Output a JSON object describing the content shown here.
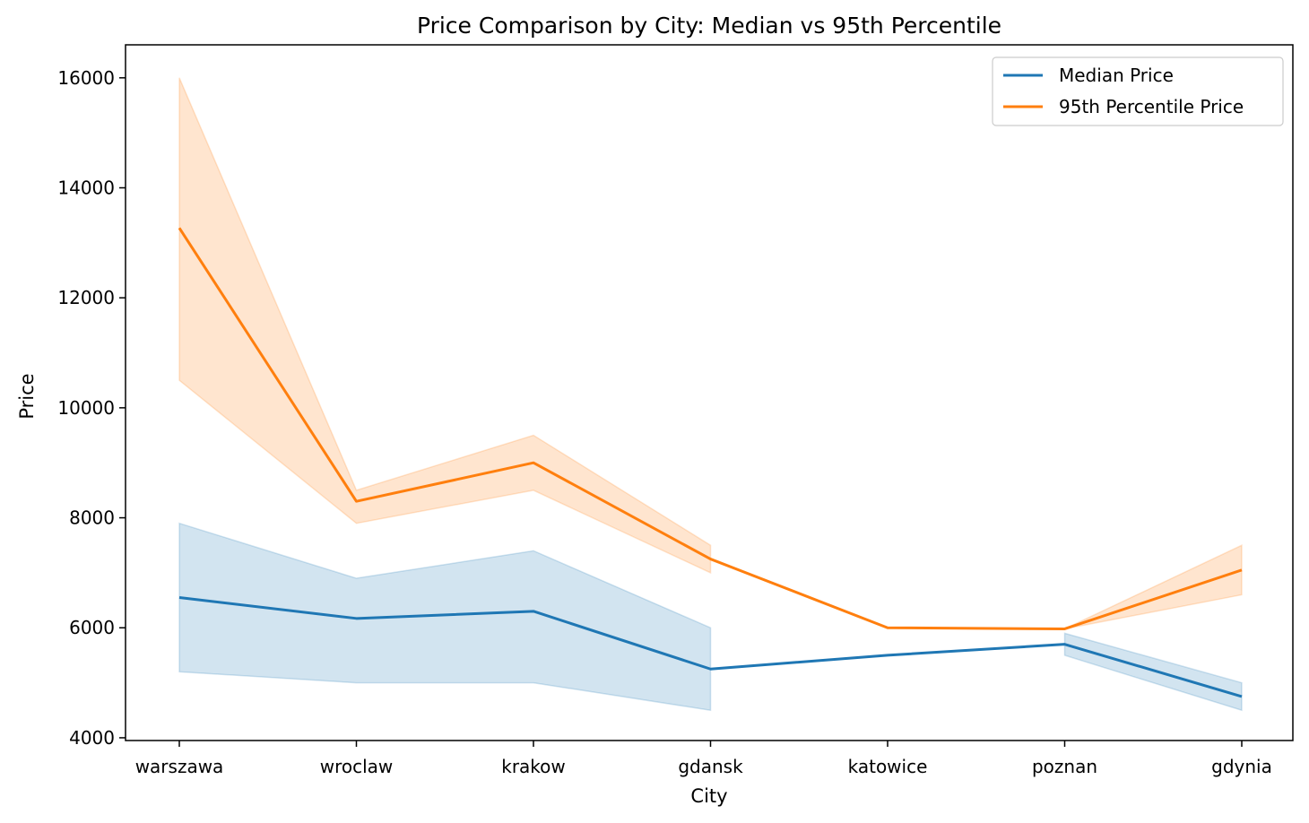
{
  "chart_data": {
    "type": "line",
    "title": "Price Comparison by City: Median vs 95th Percentile",
    "xlabel": "City",
    "ylabel": "Price",
    "categories": [
      "warszawa",
      "wroclaw",
      "krakow",
      "gdansk",
      "katowice",
      "poznan",
      "gdynia"
    ],
    "ylim": [
      3950,
      16600
    ],
    "yticks": [
      4000,
      6000,
      8000,
      10000,
      12000,
      14000,
      16000
    ],
    "grid": false,
    "legend_position": "top-right",
    "series": [
      {
        "name": "Median Price",
        "color": "#1f77b4",
        "values": [
          6550,
          6170,
          6300,
          5250,
          5500,
          5700,
          4750
        ],
        "band_low": [
          5200,
          5000,
          5000,
          4500,
          null,
          5500,
          4500
        ],
        "band_high": [
          7900,
          6900,
          7400,
          6000,
          null,
          5900,
          5000
        ]
      },
      {
        "name": "95th Percentile Price",
        "color": "#ff7f0e",
        "values": [
          13270,
          8300,
          9000,
          7250,
          6000,
          5980,
          7050
        ],
        "band_low": [
          10500,
          7900,
          8500,
          7000,
          null,
          5980,
          6600
        ],
        "band_high": [
          16000,
          8500,
          9500,
          7500,
          null,
          5980,
          7500
        ]
      }
    ]
  }
}
